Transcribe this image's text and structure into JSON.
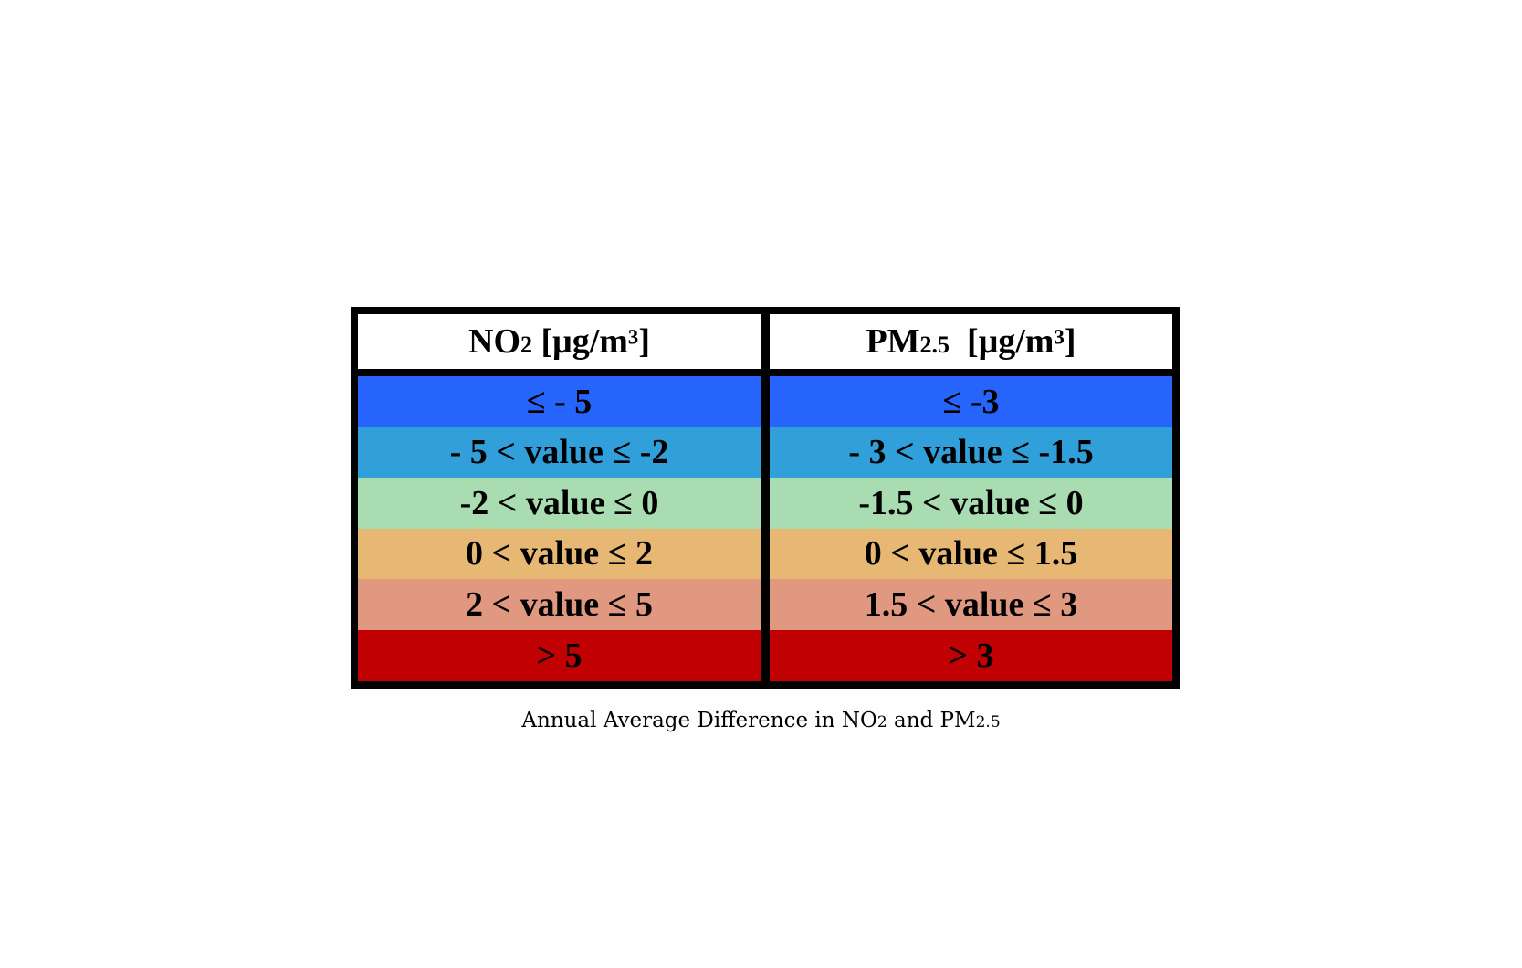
{
  "table": {
    "columns": [
      {
        "header_main": "NO",
        "header_sub": "2",
        "header_unit": " [μg/m³]",
        "bands": [
          {
            "label": "≤ - 5",
            "color": "#2764fb"
          },
          {
            "label": "- 5 < value ≤ -2",
            "color": "#31a0da"
          },
          {
            "label": "-2 < value ≤ 0",
            "color": "#a9dcb0"
          },
          {
            "label": "0 < value ≤ 2",
            "color": "#e7b874"
          },
          {
            "label": "2 < value ≤ 5",
            "color": "#e09881"
          },
          {
            "label": "> 5",
            "color": "#c00002"
          }
        ]
      },
      {
        "header_main": "PM",
        "header_sub": "2.5",
        "header_unit": "  [μg/m³]",
        "bands": [
          {
            "label": "≤ -3",
            "color": "#2764fb"
          },
          {
            "label": "- 3 < value ≤ -1.5",
            "color": "#31a0da"
          },
          {
            "label": "-1.5 < value ≤ 0",
            "color": "#a9dcb0"
          },
          {
            "label": "0 < value ≤ 1.5",
            "color": "#e7b874"
          },
          {
            "label": "1.5 < value ≤ 3",
            "color": "#e09881"
          },
          {
            "label": "> 3",
            "color": "#c00002"
          }
        ]
      }
    ]
  },
  "caption": {
    "part1": "Annual Average Difference in NO",
    "sub1": "2",
    "part2": " and PM",
    "sub2": "2.5"
  }
}
